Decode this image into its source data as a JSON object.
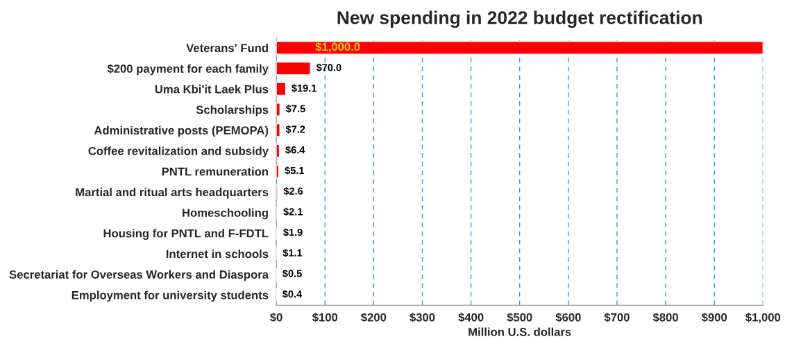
{
  "chart_data": {
    "type": "bar",
    "orientation": "horizontal",
    "title": "New spending in 2022 budget rectification",
    "xlabel": "Million U.S. dollars",
    "categories": [
      "Veterans' Fund",
      "$200 payment for each family",
      "Uma Kbi'it Laek Plus",
      "Scholarships",
      "Administrative posts (PEMOPA)",
      "Coffee revitalization and subsidy",
      "PNTL remuneration",
      "Martial and ritual arts headquarters",
      "Homeschooling",
      "Housing for PNTL and F-FDTL",
      "Internet in schools",
      "Secretariat for Overseas Workers and Diaspora",
      "Employment for university students"
    ],
    "values": [
      1000.0,
      70.0,
      19.1,
      7.5,
      7.2,
      6.4,
      5.1,
      2.6,
      2.1,
      1.9,
      1.1,
      0.5,
      0.4
    ],
    "value_labels": [
      "$1,000.0",
      "$70.0",
      "$19.1",
      "$7.5",
      "$7.2",
      "$6.4",
      "$5.1",
      "$2.6",
      "$2.1",
      "$1.9",
      "$1.1",
      "$0.5",
      "$0.4"
    ],
    "color": "#ff0000",
    "xlim": [
      0,
      1000
    ],
    "xticks": [
      {
        "value": 0,
        "label": "$0"
      },
      {
        "value": 100,
        "label": "$100"
      },
      {
        "value": 200,
        "label": "$200"
      },
      {
        "value": 300,
        "label": "$300"
      },
      {
        "value": 400,
        "label": "$400"
      },
      {
        "value": 500,
        "label": "$500"
      },
      {
        "value": 600,
        "label": "$600"
      },
      {
        "value": 700,
        "label": "$700"
      },
      {
        "value": 800,
        "label": "$800"
      },
      {
        "value": 900,
        "label": "$900"
      },
      {
        "value": 1000,
        "label": "$1,000"
      }
    ],
    "grid": "x",
    "legend": false
  }
}
